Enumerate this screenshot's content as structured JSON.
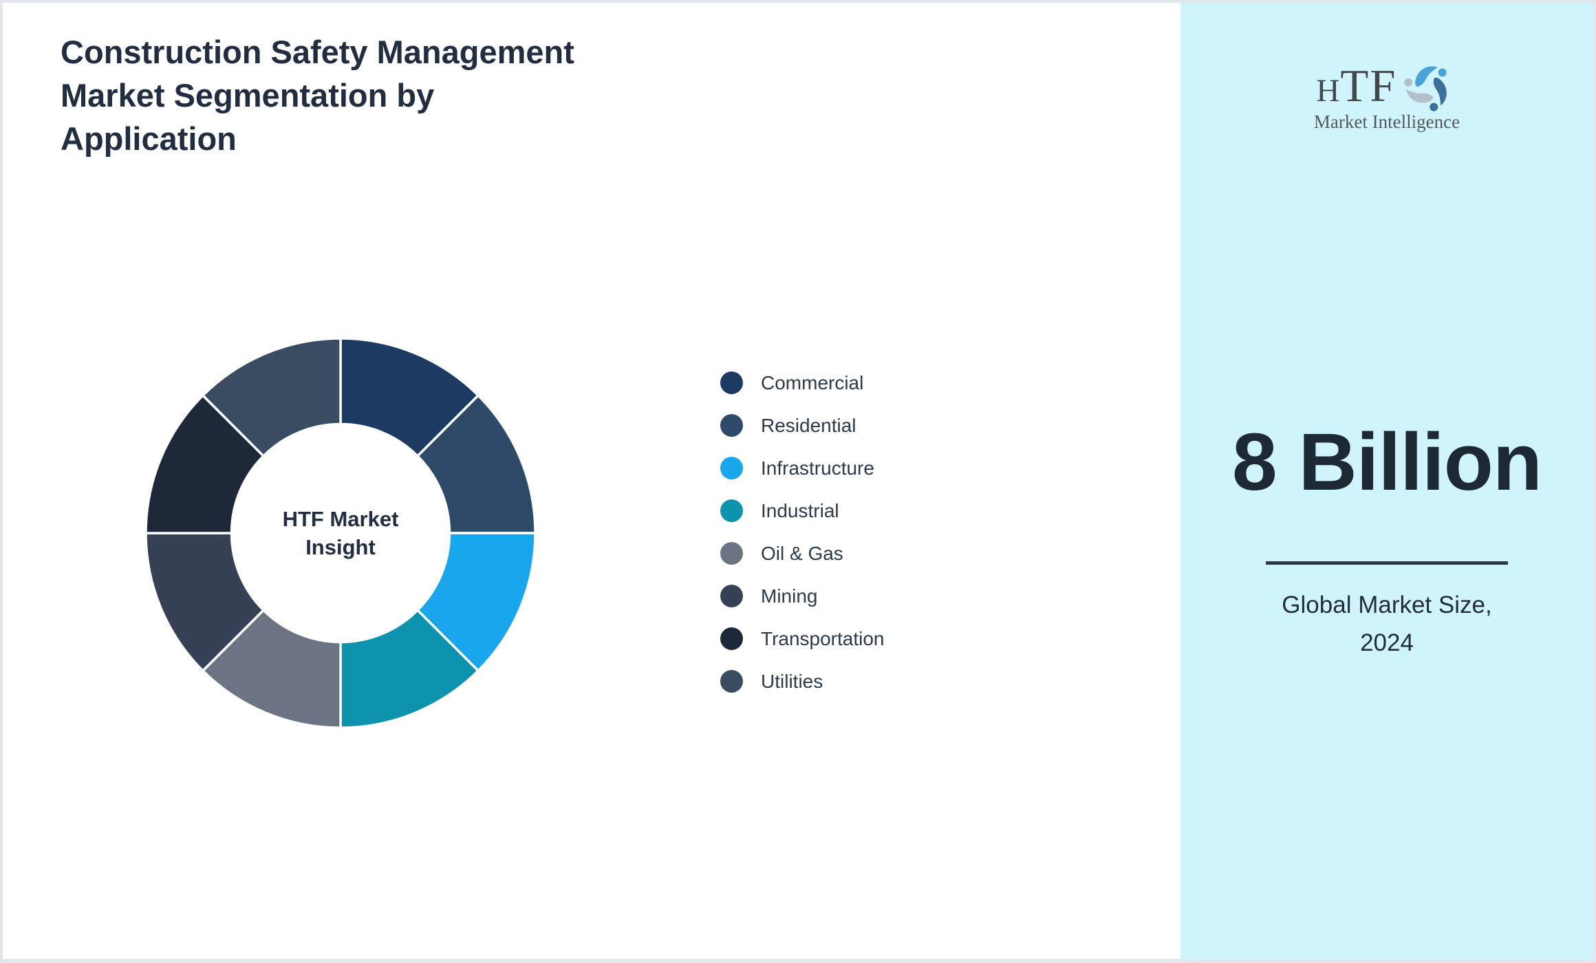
{
  "page": {
    "background": "#ffffff",
    "border_color": "#e4e6ed"
  },
  "header": {
    "title_lines": [
      "Construction Safety Management",
      "Market Segmentation by",
      "Application"
    ],
    "title_color": "#212e40"
  },
  "chart_data": {
    "type": "pie",
    "subtype": "donut",
    "title": "Construction Safety Management Market Segmentation by Application",
    "categories": [
      "Commercial",
      "Residential",
      "Infrastructure",
      "Industrial",
      "Oil & Gas",
      "Mining",
      "Transportation",
      "Utilities"
    ],
    "values": [
      12.5,
      12.5,
      12.5,
      12.5,
      12.5,
      12.5,
      12.5,
      12.5
    ],
    "value_labels_shown": false,
    "colors": [
      "#1c3a62",
      "#2e4a69",
      "#18a6ec",
      "#0e93ae",
      "#6b7482",
      "#364156",
      "#1d2939",
      "#3a4c62"
    ],
    "start_angle_deg": 0,
    "direction": "clockwise",
    "inner_radius_ratio": 0.56,
    "segment_gap_color": "#ffffff",
    "legend_position": "right",
    "center_label_lines": [
      "HTF Market",
      "Insight"
    ],
    "center_label_color": "#212e40"
  },
  "right_panel": {
    "background": "#d0f4fc",
    "logo": {
      "text_h": "H",
      "text_tf": "TF",
      "subtext": "Market Intelligence",
      "swirl_colors": [
        "#4aa2d9",
        "#3c6f9e",
        "#b3bfc9"
      ]
    },
    "market_size_value": "8 Billion",
    "market_size_value_color": "#1e2936",
    "divider_color": "#2c3a4d",
    "market_size_label_lines": [
      "Global Market Size,",
      "2024"
    ],
    "label_color": "#202d3f"
  }
}
